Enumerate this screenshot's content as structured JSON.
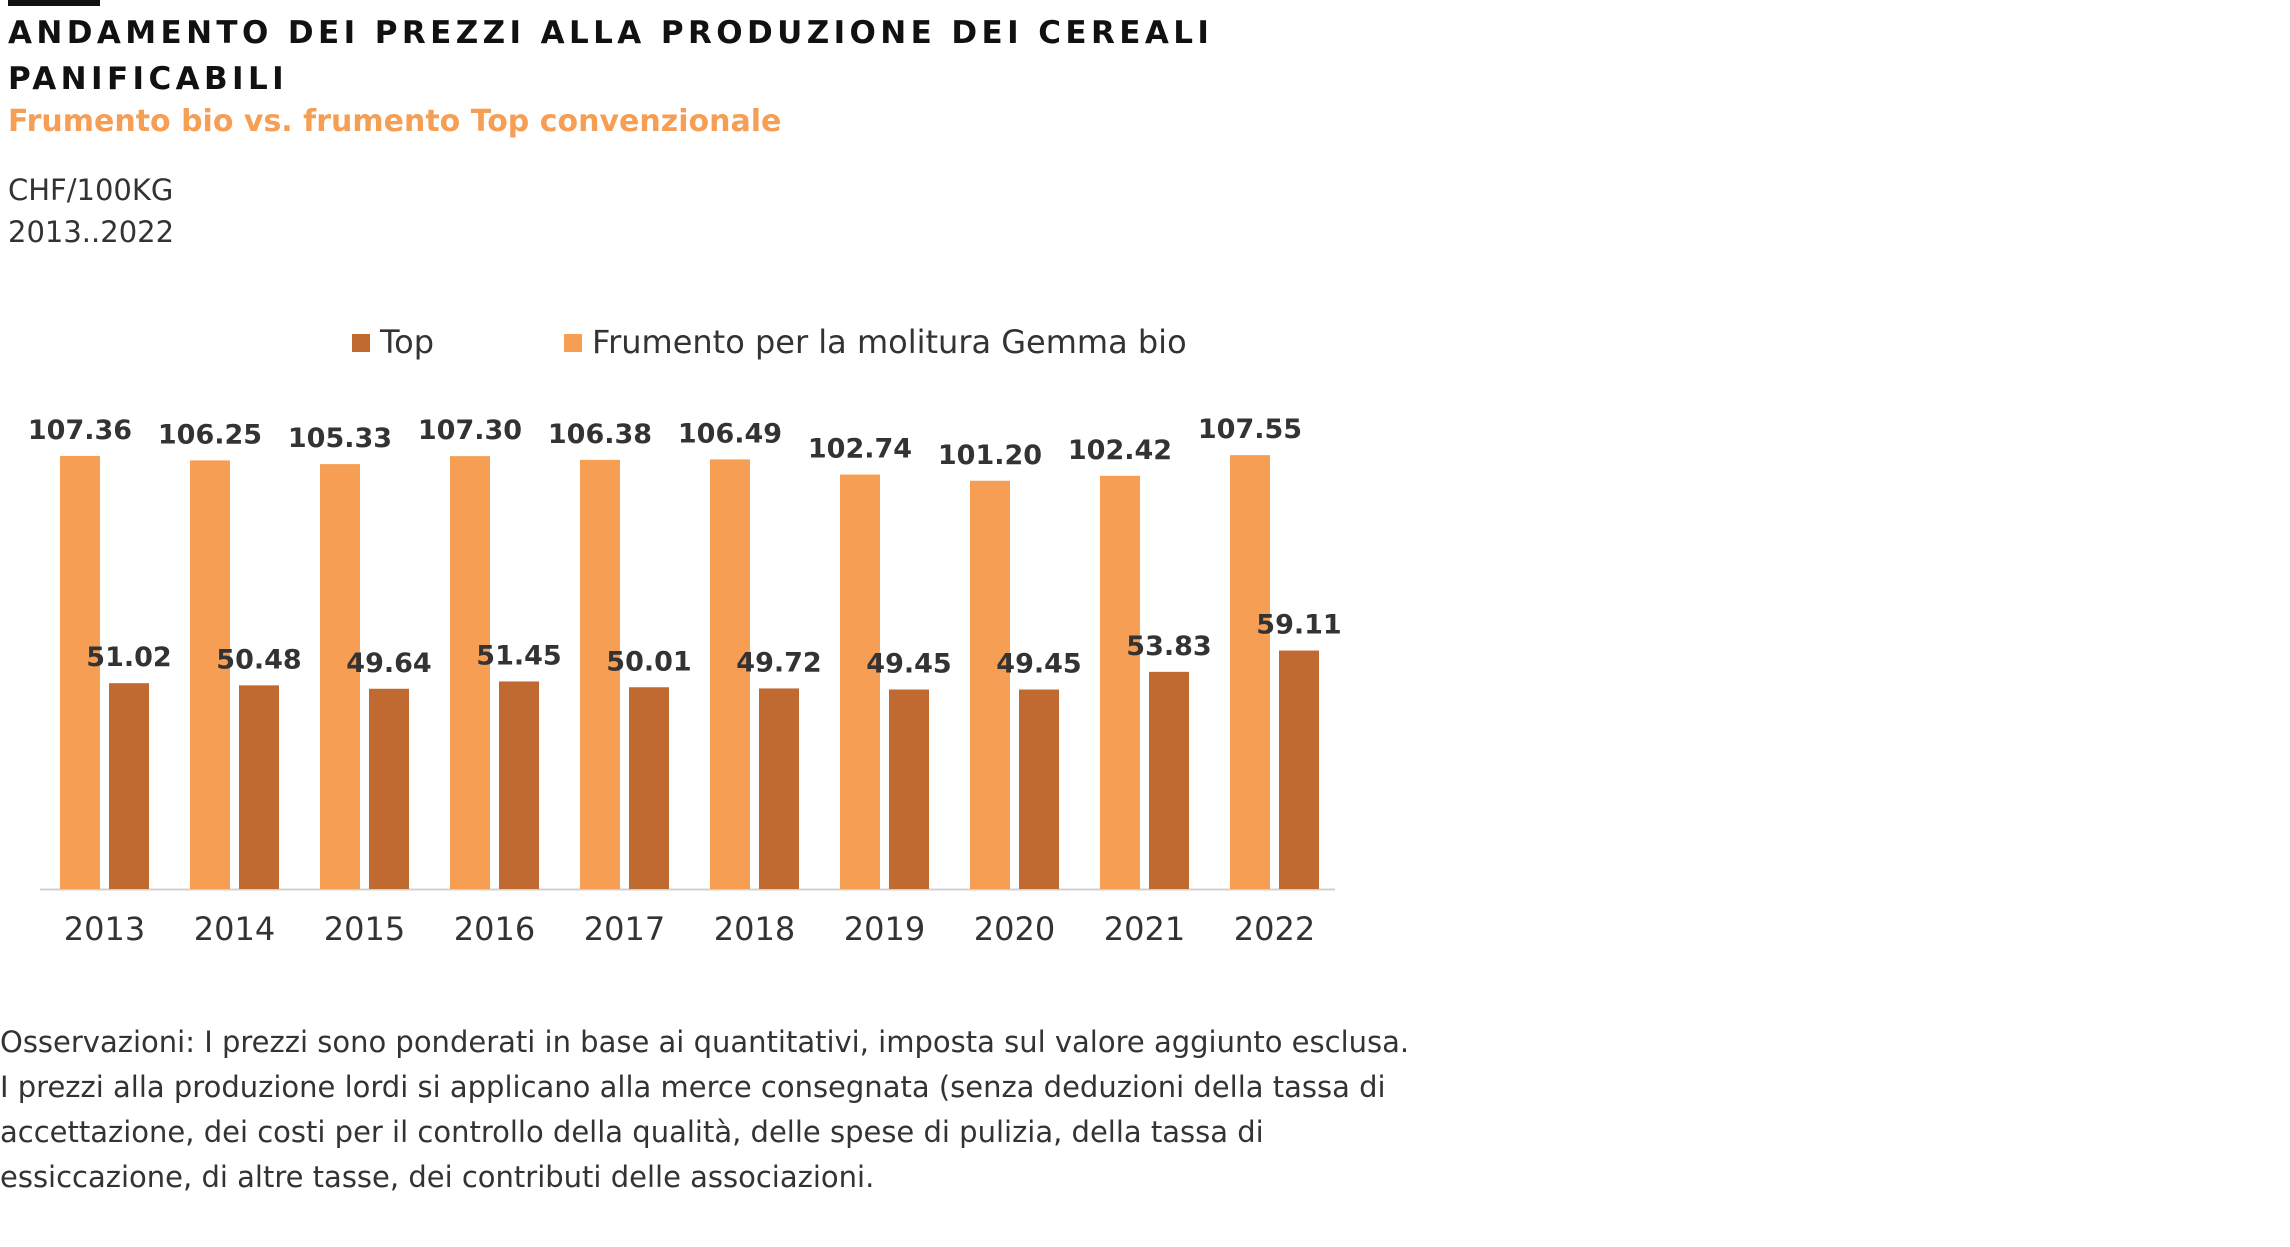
{
  "header": {
    "title": "ANDAMENTO DEI PREZZI ALLA PRODUZIONE DEI CEREALI PANIFICABILI",
    "subtitle": "Frumento bio vs. frumento Top convenzionale",
    "unit": "CHF/100KG",
    "period": "2013..2022"
  },
  "colors": {
    "bio": "#f59e54",
    "top": "#c06a31",
    "axis": "#d0d0d0",
    "label": "#333333"
  },
  "chart_data": {
    "type": "bar",
    "categories": [
      "2013",
      "2014",
      "2015",
      "2016",
      "2017",
      "2018",
      "2019",
      "2020",
      "2021",
      "2022"
    ],
    "series": [
      {
        "name": "Frumento per la molitura Gemma bio",
        "values": [
          107.36,
          106.25,
          105.33,
          107.3,
          106.38,
          106.49,
          102.74,
          101.2,
          102.42,
          107.55
        ]
      },
      {
        "name": "Top",
        "values": [
          51.02,
          50.48,
          49.64,
          51.45,
          50.01,
          49.72,
          49.45,
          49.45,
          53.83,
          59.11
        ]
      }
    ],
    "legend": [
      "Top",
      "Frumento per la molitura Gemma bio"
    ],
    "ylim": [
      0,
      110
    ],
    "xlabel": "",
    "ylabel": "",
    "grid": false,
    "legend_position": "top"
  },
  "footnote": "Osservazioni: I prezzi sono ponderati in base ai quantitativi, imposta sul valore aggiunto esclusa. I prezzi alla produzione lordi si applicano alla merce consegnata (senza deduzioni della tassa di accettazione, dei costi per il controllo della qualità, delle spese di pulizia, della tassa di essiccazione, di altre tasse, dei contributi delle associazioni."
}
